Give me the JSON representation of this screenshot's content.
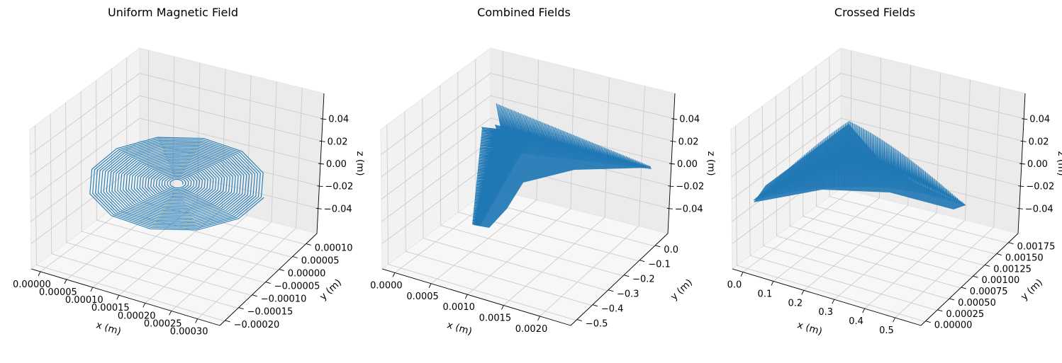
{
  "figure": {
    "background": "#ffffff"
  },
  "chart_data": [
    {
      "type": "line3d",
      "title": "Uniform Magnetic Field",
      "xlabel": "x (m)",
      "ylabel": "y (m)",
      "zlabel": "z (m)",
      "x_ticks": [
        "0.00000",
        "0.00005",
        "0.00010",
        "0.00015",
        "0.00020",
        "0.00025",
        "0.00030"
      ],
      "y_ticks": [
        "−0.00020",
        "−0.00015",
        "−0.00010",
        "−0.00005",
        "0.00000",
        "0.00005",
        "0.00010"
      ],
      "z_ticks": [
        "−0.04",
        "−0.02",
        "0.00",
        "0.02",
        "0.04"
      ],
      "xlim": [
        0,
        0.0003
      ],
      "ylim": [
        -0.0002,
        0.0001
      ],
      "zlim": [
        -0.04,
        0.04
      ],
      "line_color": "#1f77b4",
      "trajectory": {
        "shape": "inward spiral in z=0 plane",
        "x_center": 0.00015,
        "y_center": -5e-05,
        "x_radius": 0.000135,
        "y_radius": 0.000135,
        "turns": 30,
        "z": 0
      }
    },
    {
      "type": "line3d",
      "title": "Combined Fields",
      "xlabel": "x (m)",
      "ylabel": "y (m)",
      "zlabel": "z (m)",
      "x_ticks": [
        "0.0000",
        "0.0005",
        "0.0010",
        "0.0015",
        "0.0020"
      ],
      "y_ticks": [
        "−0.5",
        "−0.4",
        "−0.3",
        "−0.2",
        "−0.1",
        "0.0"
      ],
      "z_ticks": [
        "−0.04",
        "−0.02",
        "0.00",
        "0.02",
        "0.04"
      ],
      "xlim": [
        0,
        0.0022
      ],
      "ylim": [
        -0.5,
        0.0
      ],
      "zlim": [
        -0.04,
        0.04
      ],
      "line_color": "#1f77b4",
      "trajectory": {
        "shape": "dense zigzag fan in z=0 plane",
        "z": 0
      }
    },
    {
      "type": "line3d",
      "title": "Crossed Fields",
      "xlabel": "x (m)",
      "ylabel": "y (m)",
      "zlabel": "z (m)",
      "x_ticks": [
        "0.0",
        "0.1",
        "0.2",
        "0.3",
        "0.4",
        "0.5"
      ],
      "y_ticks": [
        "0.00000",
        "0.00025",
        "0.00050",
        "0.00075",
        "0.00100",
        "0.00125",
        "0.00150",
        "0.00175"
      ],
      "z_ticks": [
        "−0.04",
        "−0.02",
        "0.00",
        "0.02",
        "0.04"
      ],
      "xlim": [
        0,
        0.5
      ],
      "ylim": [
        0,
        0.0019
      ],
      "zlim": [
        -0.04,
        0.04
      ],
      "line_color": "#1f77b4",
      "trajectory": {
        "shape": "dense zigzag fan in z=0 plane",
        "z": 0
      }
    }
  ]
}
